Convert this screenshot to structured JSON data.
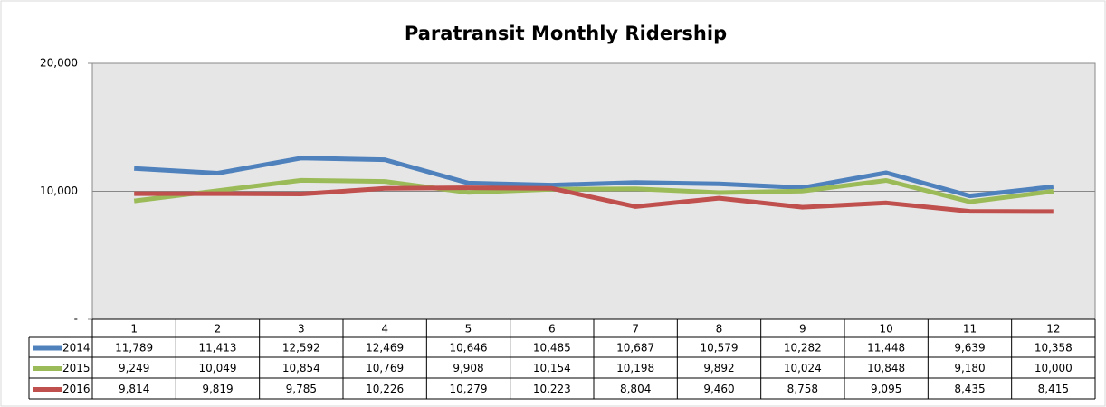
{
  "chart_data": {
    "type": "line",
    "title": "Paratransit Monthly Ridership",
    "categories": [
      "1",
      "2",
      "3",
      "4",
      "5",
      "6",
      "7",
      "8",
      "9",
      "10",
      "11",
      "12"
    ],
    "series": [
      {
        "name": "2014",
        "color": "#4f81bd",
        "values": [
          11789,
          11413,
          12592,
          12469,
          10646,
          10485,
          10687,
          10579,
          10282,
          11448,
          9639,
          10358
        ],
        "value_labels": [
          "11,789",
          "11,413",
          "12,592",
          "12,469",
          "10,646",
          "10,485",
          "10,687",
          "10,579",
          "10,282",
          "11,448",
          "9,639",
          "10,358"
        ]
      },
      {
        "name": "2015",
        "color": "#9bbb59",
        "values": [
          9249,
          10049,
          10854,
          10769,
          9908,
          10154,
          10198,
          9892,
          10024,
          10848,
          9180,
          10000
        ],
        "value_labels": [
          "9,249",
          "10,049",
          "10,854",
          "10,769",
          "9,908",
          "10,154",
          "10,198",
          "9,892",
          "10,024",
          "10,848",
          "9,180",
          "10,000"
        ]
      },
      {
        "name": "2016",
        "color": "#c0504d",
        "values": [
          9814,
          9819,
          9785,
          10226,
          10279,
          10223,
          8804,
          9460,
          8758,
          9095,
          8435,
          8415
        ],
        "value_labels": [
          "9,814",
          "9,819",
          "9,785",
          "10,226",
          "10,279",
          "10,223",
          "8,804",
          "9,460",
          "8,758",
          "9,095",
          "8,435",
          "8,415"
        ]
      }
    ],
    "ylim": [
      0,
      20000
    ],
    "yticks": [
      {
        "value": 0,
        "label": "-"
      },
      {
        "value": 10000,
        "label": "10,000"
      },
      {
        "value": 20000,
        "label": "20,000"
      }
    ],
    "grid": true
  }
}
